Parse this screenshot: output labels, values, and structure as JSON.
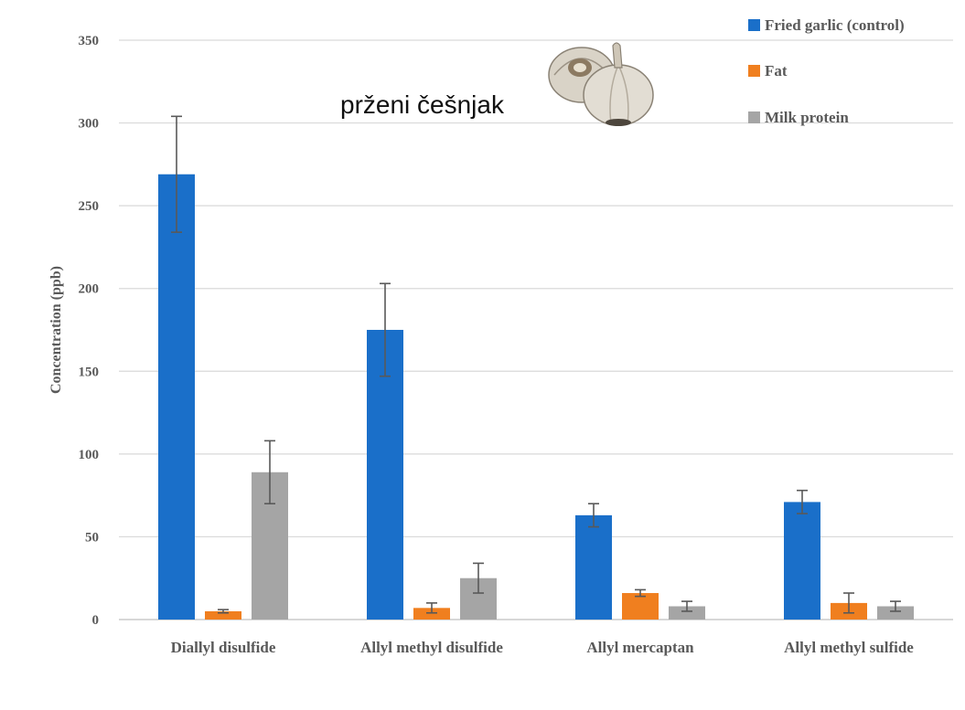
{
  "chart_data": {
    "type": "bar",
    "title": "",
    "annotation": "prženi češnjak",
    "ylabel": "Concentration (ppb)",
    "xlabel": "",
    "ylim": [
      0,
      350
    ],
    "yticks": [
      0,
      50,
      100,
      150,
      200,
      250,
      300,
      350
    ],
    "grid": true,
    "legend_position": "top-right",
    "categories": [
      "Diallyl disulfide",
      "Allyl methyl disulfide",
      "Allyl mercaptan",
      "Allyl methyl sulfide"
    ],
    "series": [
      {
        "name": "Fried garlic (control)",
        "color": "#1a6fc9",
        "values": [
          269,
          175,
          63,
          71
        ],
        "errors": [
          35,
          28,
          7,
          7
        ]
      },
      {
        "name": "Fat",
        "color": "#f07f1f",
        "values": [
          5,
          7,
          16,
          10
        ],
        "errors": [
          1,
          3,
          2,
          6
        ]
      },
      {
        "name": "Milk protein",
        "color": "#a5a5a5",
        "values": [
          89,
          25,
          8,
          8
        ],
        "errors": [
          19,
          9,
          3,
          3
        ]
      }
    ]
  },
  "image": {
    "icon": "garlic-icon"
  }
}
